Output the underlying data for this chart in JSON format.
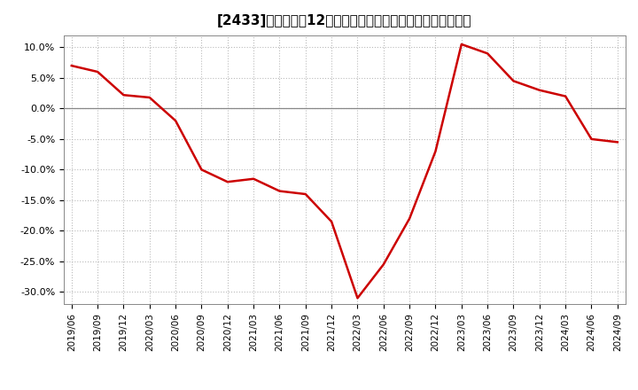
{
  "title": "[2433]　売上高の12か月移動合計の対前年同期増減率の推移",
  "line_color": "#cc0000",
  "background_color": "#ffffff",
  "plot_bg_color": "#ffffff",
  "grid_color": "#bbbbbb",
  "zero_line_color": "#888888",
  "x_labels": [
    "2019/06",
    "2019/09",
    "2019/12",
    "2020/03",
    "2020/06",
    "2020/09",
    "2020/12",
    "2021/03",
    "2021/06",
    "2021/09",
    "2021/12",
    "2022/03",
    "2022/06",
    "2022/09",
    "2022/12",
    "2023/03",
    "2023/06",
    "2023/09",
    "2023/12",
    "2024/03",
    "2024/06",
    "2024/09"
  ],
  "y_values": [
    7.0,
    6.0,
    2.2,
    1.8,
    -2.0,
    -10.0,
    -12.0,
    -11.5,
    -13.5,
    -14.0,
    -18.5,
    -31.0,
    -25.5,
    -18.0,
    -7.0,
    10.5,
    9.0,
    4.5,
    3.0,
    2.0,
    -5.0,
    -5.5
  ],
  "ylim": [
    -32,
    12
  ],
  "yticks": [
    -30,
    -25,
    -20,
    -15,
    -10,
    -5,
    0,
    5,
    10
  ],
  "title_fontsize": 11,
  "tick_fontsize": 8,
  "xtick_fontsize": 7.5
}
